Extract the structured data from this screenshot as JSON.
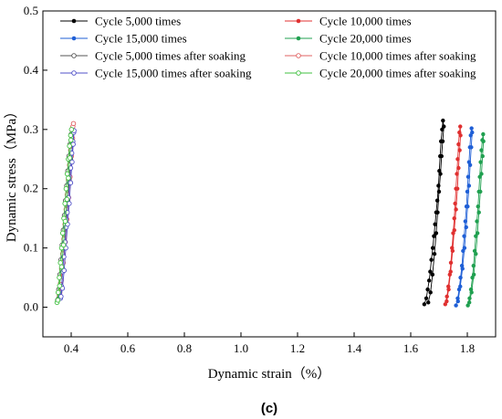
{
  "chart_data": {
    "type": "line",
    "xlabel": "Dynamic strain（%）",
    "ylabel": "Dynamic stress（MPa）",
    "panel_label": "(c)",
    "xlim": [
      0.3,
      1.9
    ],
    "ylim": [
      -0.05,
      0.5
    ],
    "xticks": [
      "0.4",
      "0.6",
      "0.8",
      "1.0",
      "1.2",
      "1.4",
      "1.6",
      "1.8"
    ],
    "yticks": [
      "0.0",
      "0.1",
      "0.2",
      "0.3",
      "0.4",
      "0.5"
    ],
    "legend_position": "top",
    "series": [
      {
        "name": "Cycle 5,000 times",
        "color": "#000000",
        "marker": "filled",
        "points": [
          [
            1.648,
            0.005
          ],
          [
            1.655,
            0.015
          ],
          [
            1.66,
            0.03
          ],
          [
            1.665,
            0.045
          ],
          [
            1.669,
            0.06
          ],
          [
            1.673,
            0.08
          ],
          [
            1.678,
            0.1
          ],
          [
            1.682,
            0.12
          ],
          [
            1.686,
            0.14
          ],
          [
            1.69,
            0.16
          ],
          [
            1.694,
            0.18
          ],
          [
            1.698,
            0.205
          ],
          [
            1.701,
            0.23
          ],
          [
            1.704,
            0.255
          ],
          [
            1.707,
            0.28
          ],
          [
            1.711,
            0.3
          ],
          [
            1.714,
            0.315
          ],
          [
            1.717,
            0.305
          ],
          [
            1.713,
            0.28
          ],
          [
            1.709,
            0.255
          ],
          [
            1.705,
            0.225
          ],
          [
            1.7,
            0.195
          ],
          [
            1.695,
            0.16
          ],
          [
            1.69,
            0.125
          ],
          [
            1.684,
            0.09
          ],
          [
            1.677,
            0.055
          ],
          [
            1.67,
            0.025
          ],
          [
            1.662,
            0.008
          ]
        ]
      },
      {
        "name": "Cycle 10,000 times",
        "color": "#e03030",
        "marker": "filled",
        "points": [
          [
            1.722,
            0.005
          ],
          [
            1.728,
            0.018
          ],
          [
            1.733,
            0.035
          ],
          [
            1.738,
            0.055
          ],
          [
            1.742,
            0.075
          ],
          [
            1.746,
            0.1
          ],
          [
            1.75,
            0.125
          ],
          [
            1.754,
            0.15
          ],
          [
            1.757,
            0.175
          ],
          [
            1.76,
            0.2
          ],
          [
            1.763,
            0.225
          ],
          [
            1.766,
            0.25
          ],
          [
            1.769,
            0.275
          ],
          [
            1.772,
            0.295
          ],
          [
            1.775,
            0.305
          ],
          [
            1.776,
            0.29
          ],
          [
            1.773,
            0.265
          ],
          [
            1.769,
            0.235
          ],
          [
            1.765,
            0.2
          ],
          [
            1.76,
            0.165
          ],
          [
            1.754,
            0.13
          ],
          [
            1.748,
            0.095
          ],
          [
            1.741,
            0.06
          ],
          [
            1.734,
            0.03
          ],
          [
            1.727,
            0.01
          ]
        ]
      },
      {
        "name": "Cycle 15,000 times",
        "color": "#1f5fd6",
        "marker": "filled",
        "points": [
          [
            1.76,
            0.003
          ],
          [
            1.766,
            0.015
          ],
          [
            1.771,
            0.03
          ],
          [
            1.776,
            0.05
          ],
          [
            1.781,
            0.07
          ],
          [
            1.785,
            0.095
          ],
          [
            1.789,
            0.12
          ],
          [
            1.793,
            0.145
          ],
          [
            1.797,
            0.17
          ],
          [
            1.8,
            0.195
          ],
          [
            1.803,
            0.22
          ],
          [
            1.806,
            0.245
          ],
          [
            1.809,
            0.27
          ],
          [
            1.812,
            0.29
          ],
          [
            1.815,
            0.302
          ],
          [
            1.817,
            0.295
          ],
          [
            1.814,
            0.27
          ],
          [
            1.81,
            0.24
          ],
          [
            1.806,
            0.205
          ],
          [
            1.801,
            0.17
          ],
          [
            1.796,
            0.135
          ],
          [
            1.79,
            0.1
          ],
          [
            1.783,
            0.065
          ],
          [
            1.775,
            0.035
          ],
          [
            1.767,
            0.01
          ]
        ]
      },
      {
        "name": "Cycle 20,000 times",
        "color": "#20a050",
        "marker": "filled",
        "points": [
          [
            1.802,
            0.003
          ],
          [
            1.808,
            0.015
          ],
          [
            1.813,
            0.03
          ],
          [
            1.818,
            0.05
          ],
          [
            1.822,
            0.07
          ],
          [
            1.826,
            0.095
          ],
          [
            1.83,
            0.12
          ],
          [
            1.834,
            0.145
          ],
          [
            1.838,
            0.17
          ],
          [
            1.841,
            0.195
          ],
          [
            1.844,
            0.22
          ],
          [
            1.847,
            0.245
          ],
          [
            1.85,
            0.265
          ],
          [
            1.853,
            0.282
          ],
          [
            1.856,
            0.292
          ],
          [
            1.857,
            0.28
          ],
          [
            1.854,
            0.255
          ],
          [
            1.85,
            0.225
          ],
          [
            1.846,
            0.195
          ],
          [
            1.841,
            0.16
          ],
          [
            1.836,
            0.125
          ],
          [
            1.83,
            0.09
          ],
          [
            1.823,
            0.055
          ],
          [
            1.815,
            0.025
          ],
          [
            1.807,
            0.008
          ]
        ]
      },
      {
        "name": "Cycle 5,000 times after soaking",
        "color": "#555555",
        "marker": "open",
        "points": [
          [
            0.352,
            0.012
          ],
          [
            0.356,
            0.03
          ],
          [
            0.36,
            0.055
          ],
          [
            0.364,
            0.08
          ],
          [
            0.368,
            0.105
          ],
          [
            0.372,
            0.13
          ],
          [
            0.376,
            0.155
          ],
          [
            0.38,
            0.18
          ],
          [
            0.384,
            0.205
          ],
          [
            0.388,
            0.23
          ],
          [
            0.392,
            0.255
          ],
          [
            0.396,
            0.275
          ],
          [
            0.4,
            0.292
          ],
          [
            0.404,
            0.3
          ],
          [
            0.402,
            0.28
          ],
          [
            0.398,
            0.25
          ],
          [
            0.393,
            0.215
          ],
          [
            0.388,
            0.18
          ],
          [
            0.382,
            0.14
          ],
          [
            0.376,
            0.1
          ],
          [
            0.369,
            0.065
          ],
          [
            0.362,
            0.035
          ],
          [
            0.356,
            0.015
          ]
        ]
      },
      {
        "name": "Cycle 10,000 times after soaking",
        "color": "#e06060",
        "marker": "open",
        "points": [
          [
            0.358,
            0.02
          ],
          [
            0.362,
            0.04
          ],
          [
            0.366,
            0.065
          ],
          [
            0.37,
            0.09
          ],
          [
            0.374,
            0.115
          ],
          [
            0.378,
            0.14
          ],
          [
            0.382,
            0.165
          ],
          [
            0.386,
            0.19
          ],
          [
            0.39,
            0.215
          ],
          [
            0.394,
            0.24
          ],
          [
            0.398,
            0.265
          ],
          [
            0.402,
            0.288
          ],
          [
            0.406,
            0.305
          ],
          [
            0.408,
            0.31
          ],
          [
            0.405,
            0.285
          ],
          [
            0.401,
            0.255
          ],
          [
            0.396,
            0.22
          ],
          [
            0.391,
            0.185
          ],
          [
            0.385,
            0.148
          ],
          [
            0.379,
            0.11
          ],
          [
            0.372,
            0.075
          ],
          [
            0.365,
            0.045
          ],
          [
            0.36,
            0.025
          ]
        ]
      },
      {
        "name": "Cycle 15,000 times after soaking",
        "color": "#5050c8",
        "marker": "open",
        "points": [
          [
            0.362,
            0.015
          ],
          [
            0.366,
            0.035
          ],
          [
            0.37,
            0.06
          ],
          [
            0.374,
            0.085
          ],
          [
            0.378,
            0.11
          ],
          [
            0.382,
            0.135
          ],
          [
            0.386,
            0.16
          ],
          [
            0.39,
            0.185
          ],
          [
            0.394,
            0.21
          ],
          [
            0.398,
            0.235
          ],
          [
            0.402,
            0.26
          ],
          [
            0.406,
            0.28
          ],
          [
            0.409,
            0.295
          ],
          [
            0.41,
            0.298
          ],
          [
            0.407,
            0.275
          ],
          [
            0.403,
            0.245
          ],
          [
            0.398,
            0.21
          ],
          [
            0.393,
            0.175
          ],
          [
            0.387,
            0.14
          ],
          [
            0.381,
            0.1
          ],
          [
            0.375,
            0.062
          ],
          [
            0.369,
            0.032
          ],
          [
            0.364,
            0.018
          ]
        ]
      },
      {
        "name": "Cycle 20,000 times after soaking",
        "color": "#40c040",
        "marker": "open",
        "points": [
          [
            0.35,
            0.008
          ],
          [
            0.354,
            0.025
          ],
          [
            0.358,
            0.05
          ],
          [
            0.362,
            0.075
          ],
          [
            0.366,
            0.1
          ],
          [
            0.37,
            0.125
          ],
          [
            0.374,
            0.15
          ],
          [
            0.378,
            0.175
          ],
          [
            0.382,
            0.2
          ],
          [
            0.386,
            0.225
          ],
          [
            0.39,
            0.25
          ],
          [
            0.394,
            0.272
          ],
          [
            0.398,
            0.29
          ],
          [
            0.401,
            0.3
          ],
          [
            0.399,
            0.282
          ],
          [
            0.395,
            0.252
          ],
          [
            0.39,
            0.218
          ],
          [
            0.385,
            0.182
          ],
          [
            0.379,
            0.145
          ],
          [
            0.373,
            0.105
          ],
          [
            0.366,
            0.068
          ],
          [
            0.359,
            0.036
          ],
          [
            0.353,
            0.012
          ]
        ]
      }
    ]
  }
}
